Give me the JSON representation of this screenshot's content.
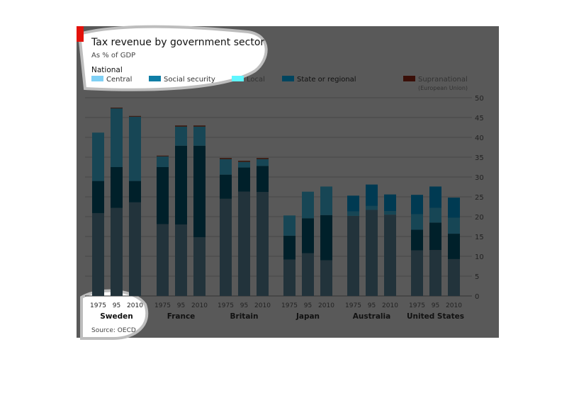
{
  "chart_data": {
    "type": "bar",
    "stacked": true,
    "title": "Tax revenue by government sector",
    "subtitle": "As % of GDP",
    "legend_heading": "National",
    "legend_placement": "top",
    "source": "Source: OECD",
    "ylim": [
      0,
      50
    ],
    "yticks": [
      0,
      5,
      10,
      15,
      20,
      25,
      30,
      35,
      40,
      45,
      50
    ],
    "grid": true,
    "y_axis_side": "right",
    "series": [
      {
        "name": "Central",
        "color": "#7fd0f5",
        "shown_color": "#22333b"
      },
      {
        "name": "Social security",
        "color": "#0f7ea6",
        "shown_color": "#00202a"
      },
      {
        "name": "Local",
        "color": "#5ff6ff",
        "shown_color": "#174655"
      },
      {
        "name": "State or regional",
        "color": "#00455f",
        "shown_color": "#003a52"
      },
      {
        "name": "Supranational",
        "note": "(European Union)",
        "color": "#3a0f08",
        "shown_color": "#3a1a10"
      }
    ],
    "groups": [
      {
        "country": "Sweden",
        "years": [
          "1975",
          "95",
          "2010"
        ],
        "values": [
          [
            20.9,
            8.1,
            12.2,
            0,
            0
          ],
          [
            22.2,
            10.3,
            14.8,
            0,
            0.2
          ],
          [
            23.6,
            5.4,
            16.2,
            0,
            0.2
          ]
        ]
      },
      {
        "country": "France",
        "years": [
          "1975",
          "95",
          "2010"
        ],
        "values": [
          [
            18.1,
            14.4,
            2.7,
            0,
            0.2
          ],
          [
            18.0,
            19.9,
            4.8,
            0,
            0.3
          ],
          [
            14.8,
            23.1,
            4.8,
            0,
            0.3
          ]
        ]
      },
      {
        "country": "Britain",
        "years": [
          "1975",
          "95",
          "2010"
        ],
        "values": [
          [
            24.5,
            6.1,
            3.9,
            0,
            0.3
          ],
          [
            26.3,
            6.1,
            1.4,
            0,
            0.3
          ],
          [
            26.2,
            6.6,
            1.7,
            0,
            0.3
          ]
        ]
      },
      {
        "country": "Japan",
        "years": [
          "1975",
          "95",
          "2010"
        ],
        "values": [
          [
            9.2,
            6.0,
            5.1,
            0,
            0
          ],
          [
            10.8,
            8.8,
            6.7,
            0,
            0
          ],
          [
            9.0,
            11.4,
            7.2,
            0,
            0
          ]
        ]
      },
      {
        "country": "Australia",
        "years": [
          "1975",
          "95",
          "2010"
        ],
        "values": [
          [
            20.2,
            0,
            1.1,
            4.0,
            0
          ],
          [
            21.7,
            0,
            1.0,
            5.4,
            0
          ],
          [
            20.5,
            0,
            0.9,
            4.2,
            0
          ]
        ]
      },
      {
        "country": "United States",
        "years": [
          "1975",
          "95",
          "2010"
        ],
        "values": [
          [
            11.5,
            5.2,
            3.9,
            4.9,
            0
          ],
          [
            11.6,
            6.9,
            3.7,
            5.4,
            0
          ],
          [
            9.3,
            6.4,
            4.0,
            5.1,
            0
          ]
        ]
      }
    ],
    "accent_color": "#e3120b"
  }
}
